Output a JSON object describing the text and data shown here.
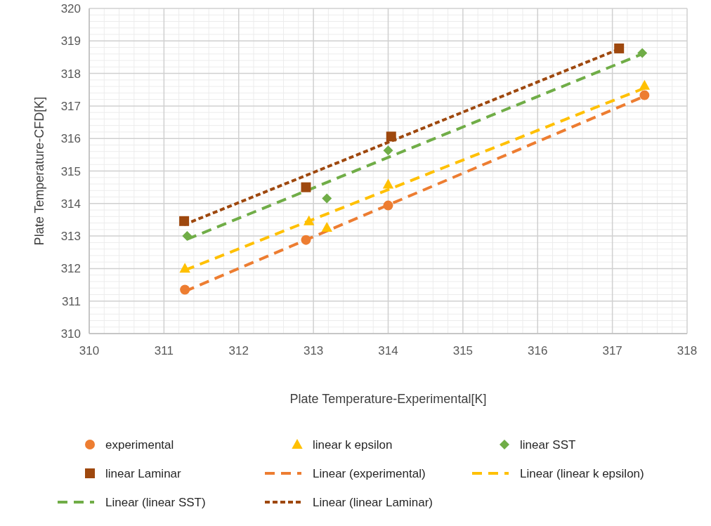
{
  "chart_data": {
    "type": "scatter",
    "xlabel": "Plate Temperature-Experimental[K]",
    "ylabel": "Plate Temperature-CFD[K]",
    "xlim": [
      310,
      318
    ],
    "xticks": [
      310,
      311,
      312,
      313,
      314,
      315,
      316,
      317,
      318
    ],
    "ylim": [
      310,
      320
    ],
    "yticks": [
      310,
      311,
      312,
      313,
      314,
      315,
      316,
      317,
      318,
      319,
      320
    ],
    "grid": true,
    "legend": "bottom",
    "series": [
      {
        "name": "experimental",
        "type": "scatter",
        "marker": "circle",
        "color": "#ed7d31",
        "x": [
          311.28,
          312.9,
          314.0,
          317.43
        ],
        "values": [
          311.35,
          312.88,
          313.94,
          317.33
        ]
      },
      {
        "name": "linear k epsilon",
        "type": "scatter",
        "marker": "triangle",
        "color": "#ffc000",
        "x": [
          311.28,
          312.94,
          313.18,
          314.0,
          317.43
        ],
        "values": [
          312.0,
          313.46,
          313.26,
          314.59,
          317.63
        ]
      },
      {
        "name": "linear SST",
        "type": "scatter",
        "marker": "diamond",
        "color": "#70ad47",
        "x": [
          311.31,
          313.18,
          314.0,
          317.4
        ],
        "values": [
          313.0,
          314.16,
          315.63,
          318.63
        ]
      },
      {
        "name": "linear Laminar",
        "type": "scatter",
        "marker": "square",
        "color": "#9e480e",
        "x": [
          311.27,
          312.9,
          314.04,
          317.09
        ],
        "values": [
          313.46,
          314.5,
          316.06,
          318.77
        ]
      },
      {
        "name": "Linear (experimental)",
        "type": "line",
        "marker": "none",
        "line_style": "dashed",
        "color": "#ed7d31",
        "x": [
          311.28,
          317.43
        ],
        "values": [
          311.3,
          317.3
        ]
      },
      {
        "name": "Linear (linear k epsilon)",
        "type": "line",
        "marker": "none",
        "line_style": "dashed",
        "color": "#ffc000",
        "x": [
          311.28,
          317.43
        ],
        "values": [
          311.95,
          317.55
        ]
      },
      {
        "name": "Linear (linear SST)",
        "type": "line",
        "marker": "none",
        "line_style": "dashed",
        "color": "#70ad47",
        "x": [
          311.31,
          317.4
        ],
        "values": [
          312.9,
          318.6
        ]
      },
      {
        "name": "Linear (linear Laminar)",
        "type": "line",
        "marker": "none",
        "line_style": "dotted",
        "color": "#9e480e",
        "x": [
          311.27,
          317.09
        ],
        "values": [
          313.35,
          318.75
        ]
      }
    ]
  }
}
